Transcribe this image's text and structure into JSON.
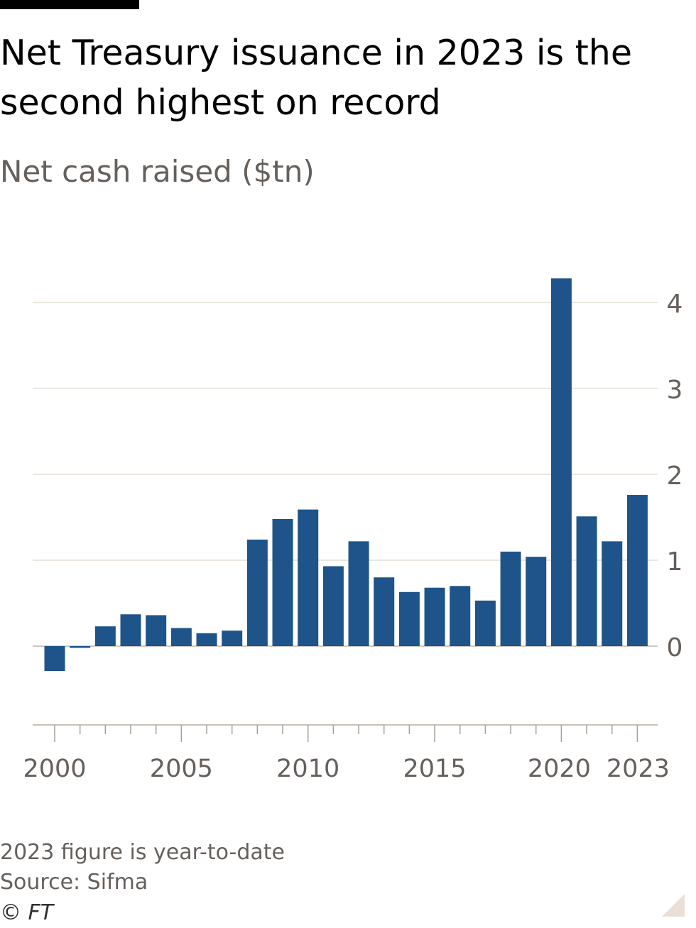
{
  "header": {
    "title": "Net Treasury issuance in 2023 is the second highest on record",
    "subtitle": "Net cash raised ($tn)"
  },
  "footer": {
    "note": "2023 figure is year-to-date",
    "source": "Source: Sifma",
    "copyright": "© FT"
  },
  "colors": {
    "bar": "#1e548a",
    "grid": "#e6ded6",
    "axis": "#66605c",
    "tick_label": "#66605c"
  },
  "chart_data": {
    "type": "bar",
    "categories": [
      "2000",
      "2001",
      "2002",
      "2003",
      "2004",
      "2005",
      "2006",
      "2007",
      "2008",
      "2009",
      "2010",
      "2011",
      "2012",
      "2013",
      "2014",
      "2015",
      "2016",
      "2017",
      "2018",
      "2019",
      "2020",
      "2021",
      "2022",
      "2023"
    ],
    "values": [
      -0.29,
      -0.02,
      0.23,
      0.37,
      0.36,
      0.21,
      0.15,
      0.18,
      1.24,
      1.48,
      1.59,
      0.93,
      1.22,
      0.8,
      0.63,
      0.68,
      0.7,
      0.53,
      1.1,
      1.04,
      4.28,
      1.51,
      1.22,
      1.76
    ],
    "x_tick_labels": [
      "2000",
      "2005",
      "2010",
      "2015",
      "2020",
      "2023"
    ],
    "y_ticks": [
      0,
      1,
      2,
      3,
      4
    ],
    "ylim": [
      -0.93,
      4.28
    ],
    "y_axis_side": "right",
    "grid": true,
    "legend": "none",
    "xlabel": "",
    "ylabel": ""
  }
}
